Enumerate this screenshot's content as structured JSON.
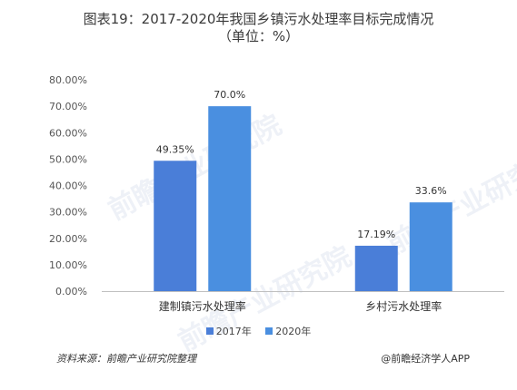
{
  "title": {
    "line1": "图表19：2017-2020年我国乡镇污水处理率目标完成情况",
    "line2": "（单位：%）"
  },
  "chart_data": {
    "type": "bar",
    "categories": [
      "建制镇污水处理率",
      "乡村污水处理率"
    ],
    "series": [
      {
        "name": "2017年",
        "values": [
          49.35,
          17.19
        ],
        "labels": [
          "49.35%",
          "17.19%"
        ],
        "color": "#4a7ed8"
      },
      {
        "name": "2020年",
        "values": [
          70.0,
          33.6
        ],
        "labels": [
          "70.0%",
          "33.6%"
        ],
        "color": "#4a8fe0"
      }
    ],
    "ylim": [
      0,
      80
    ],
    "yticks": [
      "0.00%",
      "10.00%",
      "20.00%",
      "30.00%",
      "40.00%",
      "50.00%",
      "60.00%",
      "70.00%",
      "80.00%"
    ],
    "grid": false,
    "legend_position": "bottom"
  },
  "watermark": {
    "text": "前瞻产业研究院"
  },
  "footer": {
    "source": "资料来源：前瞻产业研究院整理",
    "brand": "@前瞻经济学人APP"
  }
}
